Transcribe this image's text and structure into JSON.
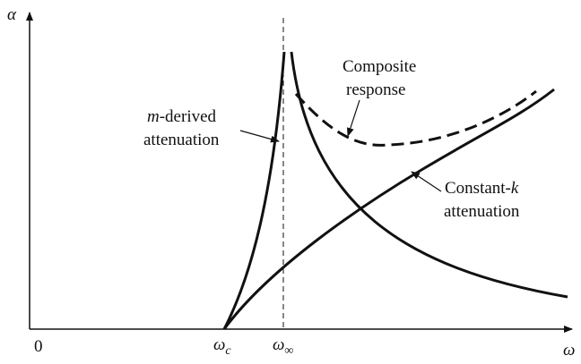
{
  "axes": {
    "y_label": "α",
    "x_label": "ω",
    "origin": "0",
    "omega_c": {
      "symbol": "ω",
      "subscript": "c"
    },
    "omega_inf": {
      "symbol": "ω",
      "subscript": "∞"
    }
  },
  "annotations": {
    "m_derived": {
      "line1": [
        "m",
        "-derived"
      ],
      "line2": "attenuation"
    },
    "composite": {
      "line1": "Composite",
      "line2": "response"
    },
    "constant_k": {
      "line1": [
        "Constant-",
        "k"
      ],
      "line2": "attenuation"
    }
  }
}
